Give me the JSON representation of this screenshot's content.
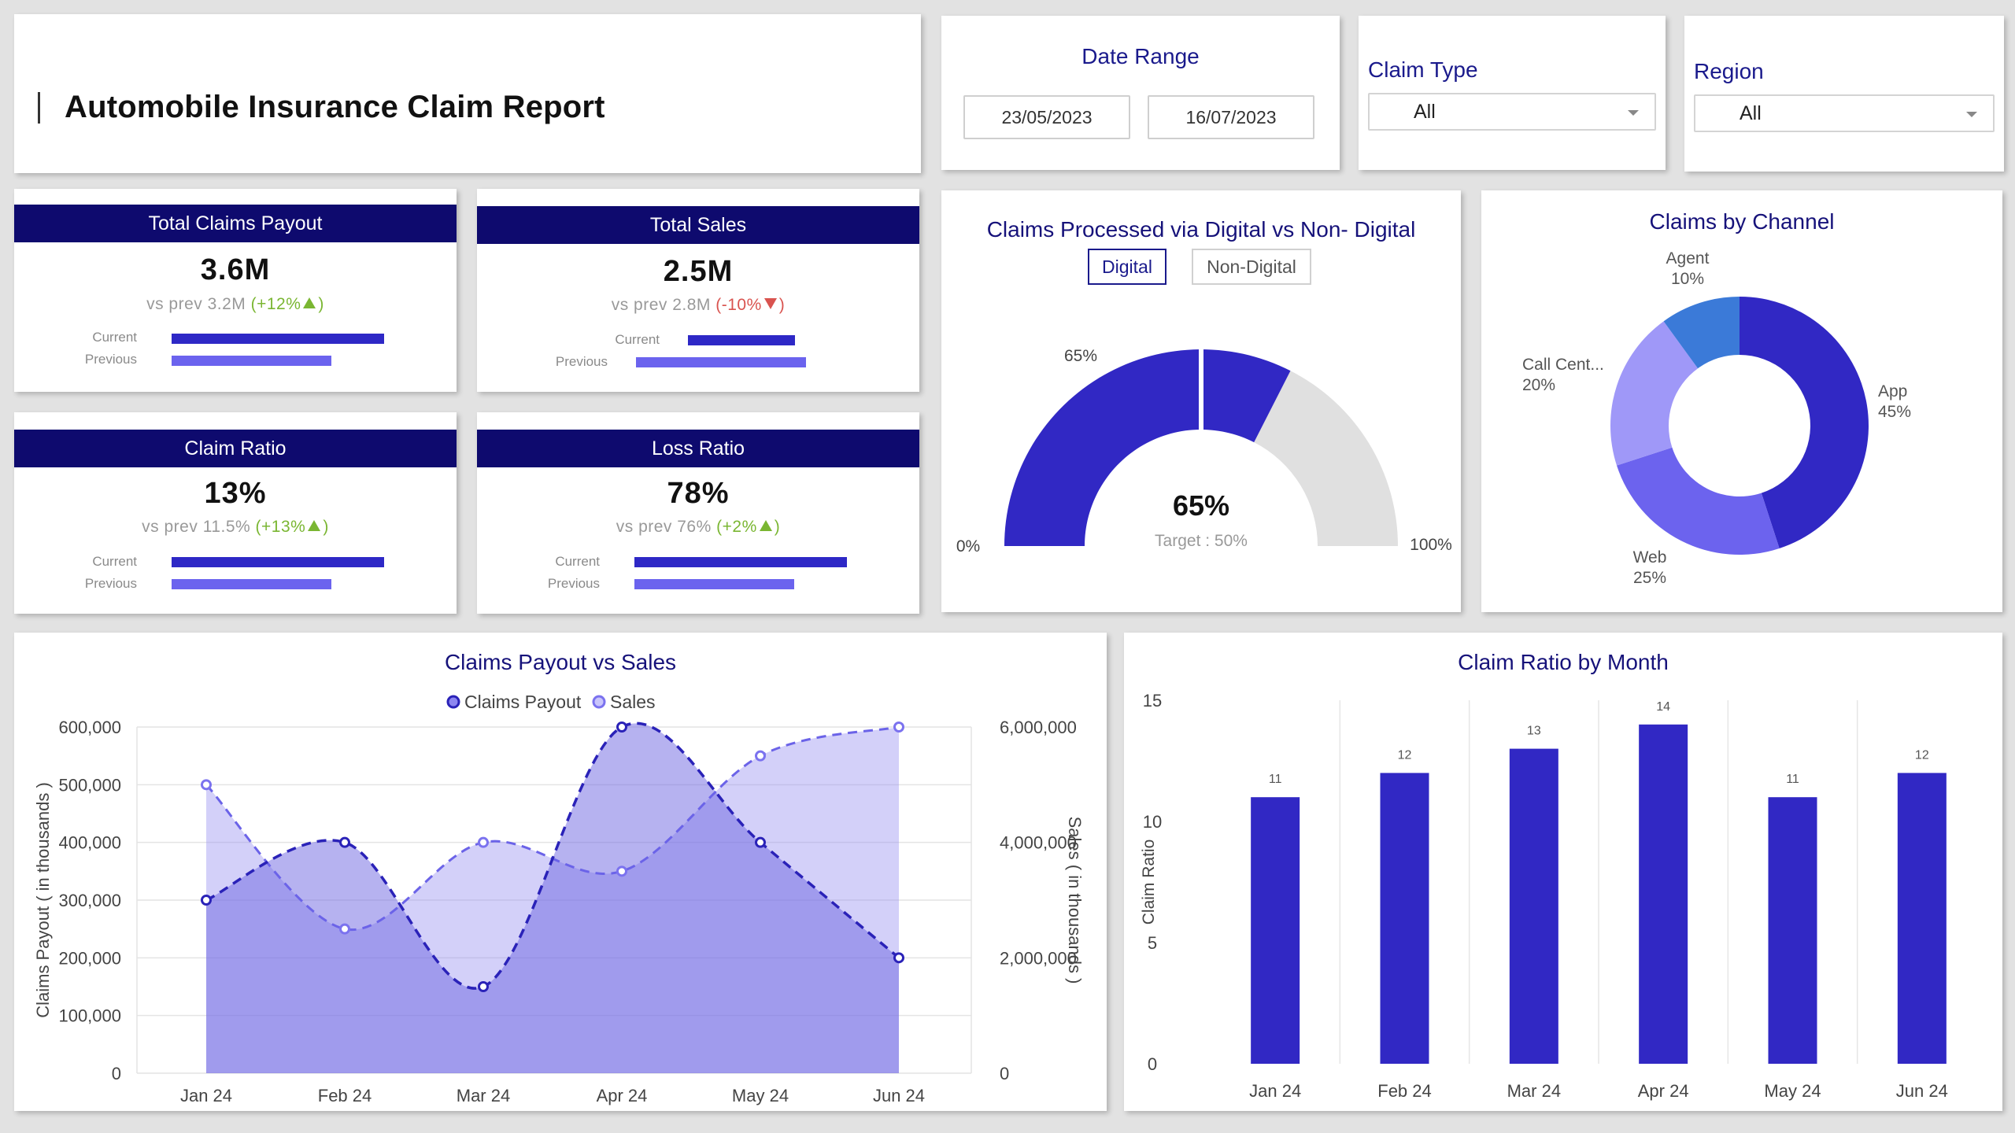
{
  "header": {
    "title": "Automobile Insurance Claim Report"
  },
  "filters": {
    "date_range": {
      "label": "Date Range",
      "start": "23/05/2023",
      "end": "16/07/2023"
    },
    "claim_type": {
      "label": "Claim Type",
      "value": "All"
    },
    "region": {
      "label": "Region",
      "value": "All"
    }
  },
  "kpis": {
    "payout": {
      "title": "Total Claims Payout",
      "value": "3.6M",
      "prev_text": "vs prev 3.2M",
      "change": "(+12%",
      "close": ")",
      "current_label": "Current",
      "previous_label": "Previous",
      "current_fraction": 1.0,
      "previous_fraction": 0.75
    },
    "sales": {
      "title": "Total Sales",
      "value": "2.5M",
      "prev_text": "vs prev 2.8M",
      "change": "(-10%",
      "close": ")",
      "current_label": "Current",
      "previous_label": "Previous",
      "current_fraction": 0.63,
      "previous_fraction": 1.0
    },
    "claim_ratio": {
      "title": "Claim Ratio",
      "value": "13%",
      "prev_text": "vs prev 11.5%",
      "change": "(+13%",
      "close": ")",
      "current_label": "Current",
      "previous_label": "Previous",
      "current_fraction": 1.0,
      "previous_fraction": 0.75
    },
    "loss_ratio": {
      "title": "Loss Ratio",
      "value": "78%",
      "prev_text": "vs prev 76%",
      "change": "(+2%",
      "close": ")",
      "current_label": "Current",
      "previous_label": "Previous",
      "current_fraction": 1.0,
      "previous_fraction": 0.75
    }
  },
  "gauge": {
    "title": "Claims Processed via Digital vs Non- Digital",
    "toggle_digital": "Digital",
    "toggle_non_digital": "Non-Digital",
    "value_label": "65%",
    "target_label": "Target : 50%",
    "min_label": "0%",
    "max_label": "100%",
    "tick_label": "65%",
    "value": 65,
    "target": 50,
    "colors": {
      "value": "#3128c4",
      "rest": "#e0e0e0"
    }
  },
  "channel": {
    "title": "Claims by Channel",
    "slices": [
      {
        "name": "App",
        "pct": "45%",
        "value": 45,
        "color": "#3128c4"
      },
      {
        "name": "Web",
        "pct": "25%",
        "value": 25,
        "color": "#6c63ee"
      },
      {
        "name": "Call Cent...",
        "pct": "20%",
        "value": 20,
        "color": "#9f98f8"
      },
      {
        "name": "Agent",
        "pct": "10%",
        "value": 10,
        "color": "#3b7ad8"
      }
    ]
  },
  "chart_data": [
    {
      "type": "area",
      "title": "Claims Payout vs Sales",
      "categories": [
        "Jan 24",
        "Feb 24",
        "Mar 24",
        "Apr 24",
        "May 24",
        "Jun 24"
      ],
      "series": [
        {
          "name": "Claims Payout",
          "axis": "left",
          "values": [
            300000,
            400000,
            150000,
            600000,
            400000,
            200000
          ],
          "color": "#3128c4"
        },
        {
          "name": "Sales",
          "axis": "right",
          "values": [
            5000000,
            2500000,
            4000000,
            3500000,
            5500000,
            6000000
          ],
          "color": "#7b72ef"
        }
      ],
      "ylabel": "Claims Payout ( in thousands )",
      "y2label": "Sales ( in thousands )",
      "ylim": [
        0,
        600000
      ],
      "y2lim": [
        0,
        6000000
      ],
      "yticks": [
        "0",
        "100,000",
        "200,000",
        "300,000",
        "400,000",
        "500,000",
        "600,000"
      ],
      "y2ticks": [
        "0",
        "2,000,000",
        "4,000,000",
        "6,000,000"
      ],
      "grid": true,
      "legend": "top"
    },
    {
      "type": "bar",
      "title": "Claim Ratio by Month",
      "categories": [
        "Jan 24",
        "Feb 24",
        "Mar 24",
        "Apr 24",
        "May 24",
        "Jun 24"
      ],
      "values": [
        11,
        12,
        13,
        14,
        11,
        12
      ],
      "ylabel": "Claim Ratio",
      "ylim": [
        0,
        15
      ],
      "yticks": [
        "0",
        "5",
        "10",
        "15"
      ],
      "color": "#3128c4"
    }
  ]
}
